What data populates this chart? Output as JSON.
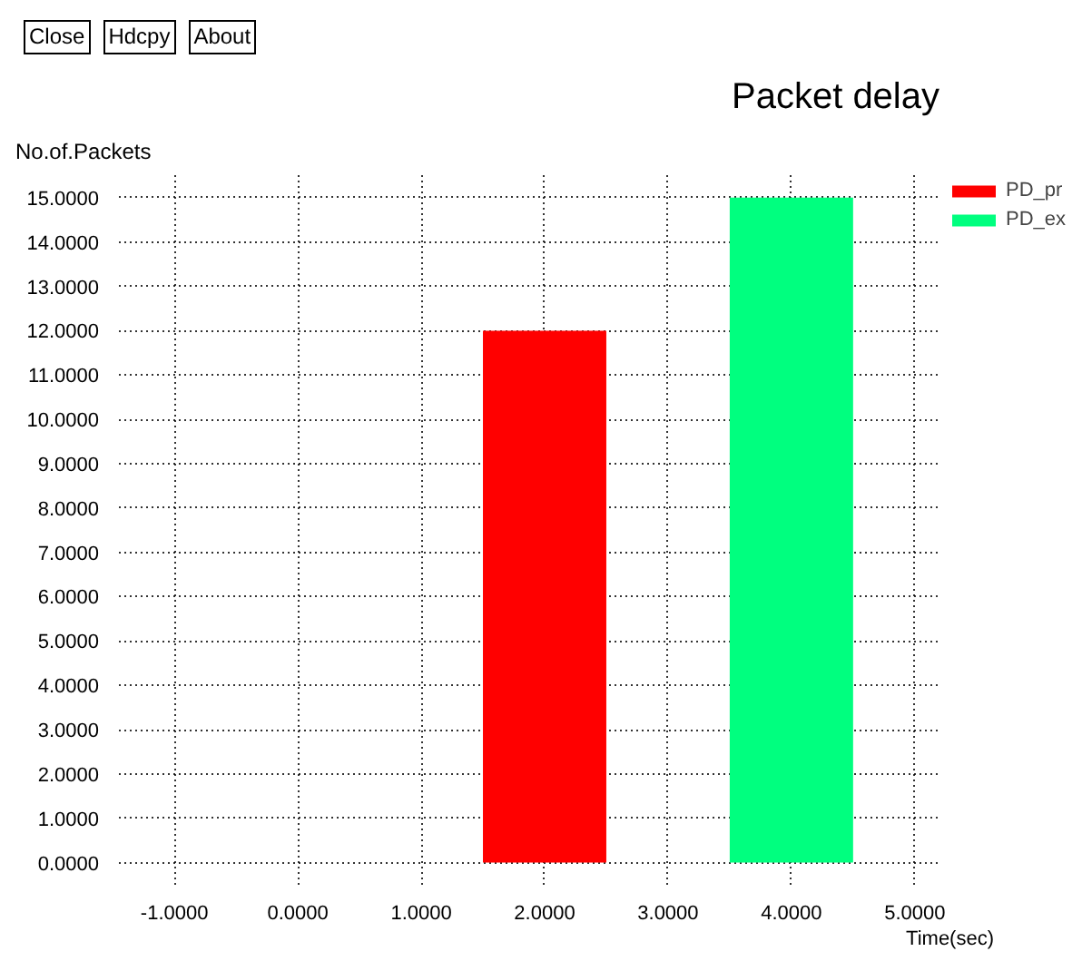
{
  "chart_data": {
    "type": "bar",
    "title": "Packet delay",
    "ylabel": "No.of.Packets",
    "xlabel": "Time(sec)",
    "annotations": [
      "Close",
      "Hdcpy",
      "About"
    ],
    "series": [
      {
        "name": "PD_pr",
        "color": "#ff0000",
        "x": [
          2
        ],
        "values": [
          12
        ]
      },
      {
        "name": "PD_ex",
        "color": "#00ff7f",
        "x": [
          4
        ],
        "values": [
          15
        ]
      }
    ],
    "xlim": [
      -1.45,
      5.2
    ],
    "ylim": [
      -0.5,
      15.55
    ],
    "xticks": [
      {
        "value": -1,
        "label": "-1.0000"
      },
      {
        "value": 0,
        "label": "0.0000"
      },
      {
        "value": 1,
        "label": "1.0000"
      },
      {
        "value": 2,
        "label": "2.0000"
      },
      {
        "value": 3,
        "label": "3.0000"
      },
      {
        "value": 4,
        "label": "4.0000"
      },
      {
        "value": 5,
        "label": "5.0000"
      }
    ],
    "yticks": [
      {
        "value": 0,
        "label": "0.0000"
      },
      {
        "value": 1,
        "label": "1.0000"
      },
      {
        "value": 2,
        "label": "2.0000"
      },
      {
        "value": 3,
        "label": "3.0000"
      },
      {
        "value": 4,
        "label": "4.0000"
      },
      {
        "value": 5,
        "label": "5.0000"
      },
      {
        "value": 6,
        "label": "6.0000"
      },
      {
        "value": 7,
        "label": "7.0000"
      },
      {
        "value": 8,
        "label": "8.0000"
      },
      {
        "value": 9,
        "label": "9.0000"
      },
      {
        "value": 10,
        "label": "10.0000"
      },
      {
        "value": 11,
        "label": "11.0000"
      },
      {
        "value": 12,
        "label": "12.0000"
      },
      {
        "value": 13,
        "label": "13.0000"
      },
      {
        "value": 14,
        "label": "14.0000"
      },
      {
        "value": 15,
        "label": "15.0000"
      }
    ],
    "grid": true,
    "legend": "top right"
  }
}
